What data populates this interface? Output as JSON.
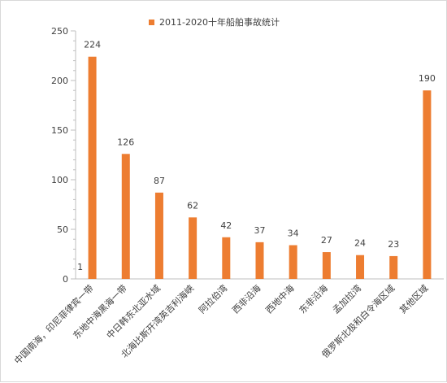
{
  "chart_data": {
    "type": "bar",
    "title": "",
    "xlabel": "",
    "ylabel": "",
    "legend": {
      "position": "top",
      "entries": [
        "2011-2020十年船舶事故统计"
      ]
    },
    "grid": false,
    "ylim": [
      0,
      250
    ],
    "yticks": [
      0,
      50,
      100,
      150,
      200,
      250
    ],
    "categories": [
      "中国南海，印尼菲律宾一带",
      "东地中海黑海一带",
      "中日韩东北亚水域",
      "北海比斯开湾英吉利海峡",
      "阿拉伯湾",
      "西非沿海",
      "西地中海",
      "东非沿海",
      "孟加拉湾",
      "俄罗斯北极和白令海区域",
      "其他区域"
    ],
    "series": [
      {
        "name": "2011-2020十年船舶事故统计",
        "color": "#ed7d31",
        "values": [
          224,
          126,
          87,
          62,
          42,
          37,
          34,
          27,
          24,
          23,
          190
        ]
      }
    ],
    "annotations": [
      {
        "text": "1",
        "category": "中国南海，印尼菲律宾一带",
        "value": 1
      }
    ]
  }
}
